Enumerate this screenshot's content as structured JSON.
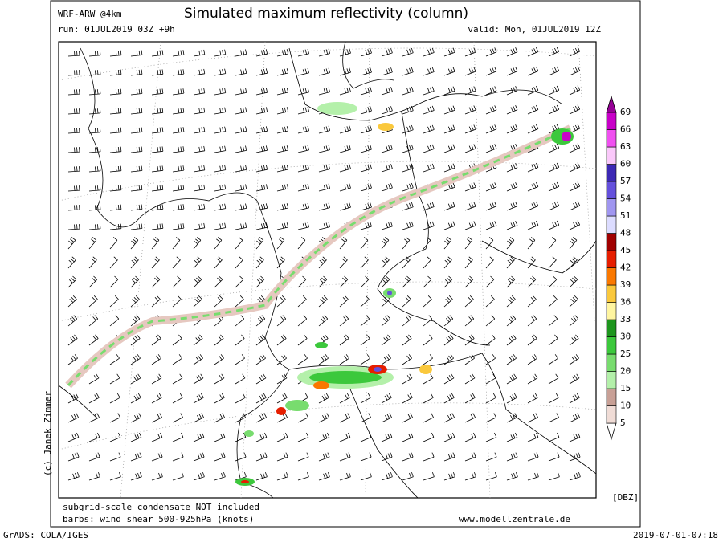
{
  "header": {
    "model": "WRF-ARW @4km",
    "title": "Simulated maximum reflectivity (column)",
    "run": "run: 01JUL2019 03Z +9h",
    "valid": "valid: Mon, 01JUL2019 12Z"
  },
  "colorbar": {
    "unit": "[DBZ]",
    "levels": [
      {
        "value": 5,
        "color": "#f0dcd6"
      },
      {
        "value": 10,
        "color": "#c8a096"
      },
      {
        "value": 15,
        "color": "#b4f0aa"
      },
      {
        "value": 20,
        "color": "#78dc6e"
      },
      {
        "value": 25,
        "color": "#3cc83c"
      },
      {
        "value": 30,
        "color": "#1e961e"
      },
      {
        "value": 33,
        "color": "#fff5a0"
      },
      {
        "value": 36,
        "color": "#fac83c"
      },
      {
        "value": 39,
        "color": "#fa7800"
      },
      {
        "value": 42,
        "color": "#e61e00"
      },
      {
        "value": 45,
        "color": "#a00000"
      },
      {
        "value": 48,
        "color": "#dcdcff"
      },
      {
        "value": 51,
        "color": "#a096f0"
      },
      {
        "value": 54,
        "color": "#6450dc"
      },
      {
        "value": 57,
        "color": "#3c28b4"
      },
      {
        "value": 60,
        "color": "#fac8fa"
      },
      {
        "value": 63,
        "color": "#f050f0"
      },
      {
        "value": 66,
        "color": "#c800c8"
      },
      {
        "value": 69,
        "color": "#960096"
      }
    ]
  },
  "footer": {
    "note1": "subgrid-scale condensate NOT included",
    "note2": "barbs: wind shear 500-925hPa (knots)",
    "credit": "(c) Janek Zimmer",
    "website": "www.modellzentrale.de",
    "software": "GrADS: COLA/IGES",
    "timestamp": "2019-07-01-07:18"
  }
}
